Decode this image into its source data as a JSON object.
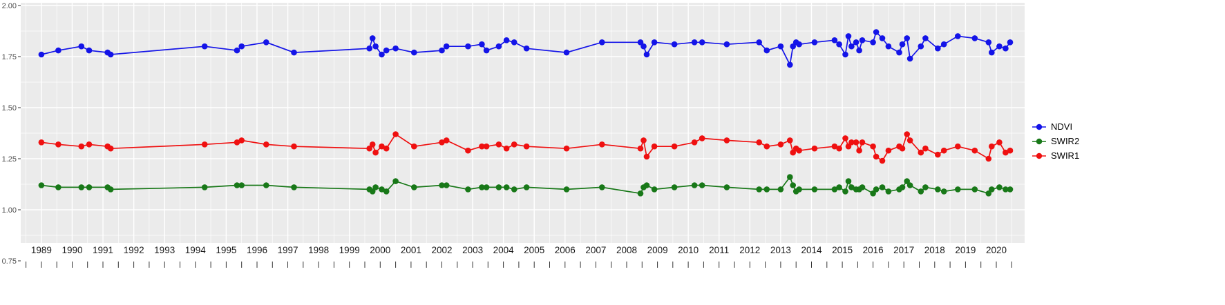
{
  "figure": {
    "background": "#ffffff",
    "panel_background": "#ebebeb",
    "grid_color": "#ffffff",
    "axis_text_color": "#4d4d4d",
    "tick_color": "#333333"
  },
  "chart_data": {
    "type": "line",
    "title": "",
    "xlabel": "",
    "ylabel": "",
    "grid": true,
    "legend_position": "right",
    "xlim": [
      1988.33,
      2020.92
    ],
    "ylim": [
      0.75,
      2.0
    ],
    "y_tick_labels": [
      "2.00",
      "1.75",
      "1.50",
      "1.25",
      "1.00",
      "0.75"
    ],
    "y_tick_values": [
      2.0,
      1.75,
      1.5,
      1.25,
      1.0,
      0.75
    ],
    "y_minor_ticks": [
      1.875,
      1.625,
      1.375,
      1.125,
      0.875
    ],
    "x_tick_labels": [
      "1989",
      "1990",
      "1991",
      "1992",
      "1993",
      "1994",
      "1995",
      "1996",
      "1997",
      "1998",
      "1999",
      "2000",
      "2001",
      "2002",
      "2003",
      "2004",
      "2005",
      "2006",
      "2007",
      "2008",
      "2009",
      "2010",
      "2011",
      "2012",
      "2013",
      "2014",
      "2015",
      "2016",
      "2017",
      "2018",
      "2019",
      "2020"
    ],
    "x": [
      1989.0,
      1989.55,
      1990.3,
      1990.55,
      1991.15,
      1991.25,
      1994.3,
      1995.35,
      1995.5,
      1996.3,
      1997.2,
      1999.65,
      1999.75,
      1999.85,
      2000.05,
      2000.2,
      2000.5,
      2001.1,
      2002.0,
      2002.15,
      2002.85,
      2003.3,
      2003.45,
      2003.85,
      2004.1,
      2004.35,
      2004.75,
      2006.05,
      2007.2,
      2008.45,
      2008.55,
      2008.65,
      2008.9,
      2009.55,
      2010.2,
      2010.45,
      2011.25,
      2012.3,
      2012.55,
      2013.0,
      2013.3,
      2013.4,
      2013.5,
      2013.6,
      2014.1,
      2014.75,
      2014.9,
      2015.1,
      2015.2,
      2015.3,
      2015.45,
      2015.55,
      2015.65,
      2016.0,
      2016.1,
      2016.3,
      2016.5,
      2016.85,
      2016.95,
      2017.1,
      2017.2,
      2017.55,
      2017.7,
      2018.1,
      2018.3,
      2018.75,
      2019.3,
      2019.75,
      2019.85,
      2020.1,
      2020.3,
      2020.45
    ],
    "series": [
      {
        "name": "NDVI",
        "color": "#1414e8",
        "values": [
          1.76,
          1.78,
          1.8,
          1.78,
          1.77,
          1.76,
          1.8,
          1.78,
          1.8,
          1.82,
          1.77,
          1.79,
          1.84,
          1.8,
          1.76,
          1.78,
          1.79,
          1.77,
          1.78,
          1.8,
          1.8,
          1.81,
          1.78,
          1.8,
          1.83,
          1.82,
          1.79,
          1.77,
          1.82,
          1.82,
          1.8,
          1.76,
          1.82,
          1.81,
          1.82,
          1.82,
          1.81,
          1.82,
          1.78,
          1.8,
          1.71,
          1.8,
          1.82,
          1.81,
          1.82,
          1.83,
          1.81,
          1.76,
          1.85,
          1.8,
          1.82,
          1.78,
          1.83,
          1.82,
          1.87,
          1.84,
          1.8,
          1.77,
          1.81,
          1.84,
          1.74,
          1.8,
          1.84,
          1.79,
          1.81,
          1.85,
          1.84,
          1.82,
          1.77,
          1.8,
          1.79,
          1.82
        ]
      },
      {
        "name": "SWIR2",
        "color": "#187818",
        "values": [
          1.12,
          1.11,
          1.11,
          1.11,
          1.11,
          1.1,
          1.11,
          1.12,
          1.12,
          1.12,
          1.11,
          1.1,
          1.09,
          1.11,
          1.1,
          1.09,
          1.14,
          1.11,
          1.12,
          1.12,
          1.1,
          1.11,
          1.11,
          1.11,
          1.11,
          1.1,
          1.11,
          1.1,
          1.11,
          1.08,
          1.11,
          1.12,
          1.1,
          1.11,
          1.12,
          1.12,
          1.11,
          1.1,
          1.1,
          1.1,
          1.16,
          1.12,
          1.09,
          1.1,
          1.1,
          1.1,
          1.11,
          1.09,
          1.14,
          1.11,
          1.1,
          1.1,
          1.11,
          1.08,
          1.1,
          1.11,
          1.09,
          1.1,
          1.11,
          1.14,
          1.12,
          1.09,
          1.11,
          1.1,
          1.09,
          1.1,
          1.1,
          1.08,
          1.1,
          1.11,
          1.1,
          1.1
        ]
      },
      {
        "name": "SWIR1",
        "color": "#ef1010",
        "values": [
          1.33,
          1.32,
          1.31,
          1.32,
          1.31,
          1.3,
          1.32,
          1.33,
          1.34,
          1.32,
          1.31,
          1.3,
          1.32,
          1.28,
          1.31,
          1.3,
          1.37,
          1.31,
          1.33,
          1.34,
          1.29,
          1.31,
          1.31,
          1.32,
          1.3,
          1.32,
          1.31,
          1.3,
          1.32,
          1.3,
          1.34,
          1.26,
          1.31,
          1.31,
          1.33,
          1.35,
          1.34,
          1.33,
          1.31,
          1.32,
          1.34,
          1.28,
          1.3,
          1.29,
          1.3,
          1.31,
          1.3,
          1.35,
          1.31,
          1.33,
          1.33,
          1.29,
          1.33,
          1.31,
          1.26,
          1.24,
          1.29,
          1.31,
          1.3,
          1.37,
          1.34,
          1.28,
          1.3,
          1.27,
          1.29,
          1.31,
          1.29,
          1.25,
          1.31,
          1.33,
          1.28,
          1.29
        ]
      }
    ]
  }
}
